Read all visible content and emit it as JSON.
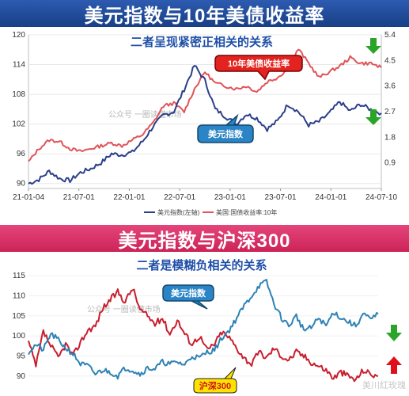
{
  "banner_top": "美元指数与10年美债收益率",
  "banner_mid": "美元指数与沪深300",
  "watermark_bottom": "美川红玫瑰",
  "colors": {
    "dxy": "#2b3f8a",
    "yield": "#e0545a",
    "dxy2": "#2e82b5",
    "hs300": "#c81e2e",
    "up": "#e0101a",
    "down": "#2aa52a"
  },
  "chart_data": [
    {
      "type": "line",
      "title": "二者呈现紧密正相关的关系",
      "watermark": "公众号 一圈读懂市场",
      "x_ticks": [
        "21-01-04",
        "21-07-01",
        "22-01-01",
        "22-07-01",
        "23-01-01",
        "23-07-01",
        "24-01-01",
        "24-07-10"
      ],
      "y_left": {
        "ticks": [
          90,
          96,
          102,
          108,
          114,
          120
        ],
        "range": [
          89,
          120
        ]
      },
      "y_right": {
        "ticks": [
          0.9,
          1.8,
          2.7,
          3.6,
          4.5,
          5.4
        ],
        "range": [
          0,
          5.4
        ]
      },
      "callouts": [
        "10年美债收益率",
        "美元指数"
      ],
      "series": [
        {
          "name": "美元指数(左轴)",
          "axis": "left",
          "values": [
            90.0,
            90.8,
            92.5,
            91.0,
            90.6,
            92.2,
            93.0,
            94.2,
            96.0,
            95.8,
            96.3,
            98.5,
            101.5,
            103.8,
            104.5,
            109.0,
            113.8,
            110.8,
            105.0,
            103.5,
            102.0,
            104.0,
            103.2,
            101.0,
            102.6,
            106.0,
            104.5,
            101.8,
            102.5,
            104.2,
            106.5,
            104.6,
            106.0,
            104.9,
            104.2
          ]
        },
        {
          "name": "美国:国债收益率:10年",
          "axis": "right",
          "values": [
            0.93,
            1.4,
            1.7,
            1.65,
            1.4,
            1.3,
            1.4,
            1.5,
            1.6,
            1.5,
            1.7,
            1.9,
            2.3,
            2.9,
            3.0,
            2.7,
            3.5,
            4.1,
            3.7,
            3.6,
            3.5,
            3.6,
            3.4,
            3.75,
            3.9,
            4.2,
            4.9,
            4.4,
            3.9,
            4.1,
            4.3,
            4.6,
            4.4,
            4.4,
            4.25
          ]
        }
      ]
    },
    {
      "type": "line",
      "title": "二者是模糊负相关的关系",
      "watermark": "公众号 一圈读懂市场",
      "y_left": {
        "ticks": [
          90,
          95,
          100,
          105,
          110,
          115
        ],
        "range": [
          87,
          117
        ]
      },
      "callouts": [
        "美元指数",
        "沪深300"
      ],
      "series": [
        {
          "name": "美元指数",
          "values": [
            96.0,
            97.8,
            96.5,
            100.5,
            99.0,
            97.0,
            95.5,
            93.0,
            92.5,
            90.5,
            91.5,
            91.0,
            90.0,
            92.0,
            91.5,
            90.5,
            92.0,
            91.8,
            93.5,
            93.0,
            93.5,
            92.8,
            95.0,
            94.5,
            96.0,
            96.5,
            99.5,
            101.5,
            104.5,
            107.5,
            110.0,
            112.5,
            113.5,
            108.0,
            104.5,
            102.5,
            105.0,
            101.5,
            102.0,
            104.5,
            102.5,
            106.0,
            104.5,
            103.5,
            102.5,
            105.5,
            104.0,
            105.5
          ]
        },
        {
          "name": "沪深300",
          "values": [
            98.5,
            92.5,
            101.0,
            97.5,
            94.5,
            98.0,
            95.0,
            98.5,
            101.5,
            102.5,
            107.0,
            109.0,
            111.0,
            108.5,
            112.0,
            106.5,
            105.0,
            103.0,
            104.5,
            100.5,
            104.0,
            100.5,
            98.0,
            100.0,
            96.5,
            98.0,
            101.0,
            99.5,
            97.0,
            94.5,
            93.0,
            96.0,
            94.5,
            97.0,
            95.0,
            94.0,
            96.0,
            95.0,
            93.5,
            92.5,
            91.5,
            89.5,
            91.0,
            90.0,
            89.0,
            91.5,
            90.5,
            90.0
          ]
        }
      ]
    }
  ]
}
